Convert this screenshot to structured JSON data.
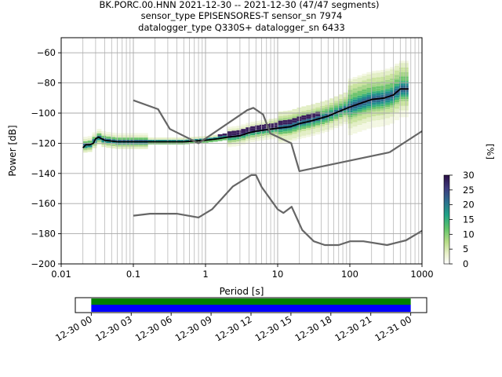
{
  "title": {
    "line1": "BK.PORC.00.HNN   2021-12-30 -- 2021-12-30  (47/47 segments)",
    "line2": "sensor_type EPISENSORES-T sensor_sn 7974",
    "line3": "datalogger_type Q330S+ datalogger_sn 6433"
  },
  "chart_data": [
    {
      "type": "heatmap",
      "title": "BK.PORC.00.HNN   2021-12-30 -- 2021-12-30  (47/47 segments)",
      "xlabel": "Period [s]",
      "ylabel": "Power [dB]",
      "x_scale": "log",
      "xlim": [
        0.01,
        1000
      ],
      "ylim": [
        -200,
        -50
      ],
      "x_tick_labels": [
        "0.01",
        "0.1",
        "1",
        "10",
        "100",
        "1000"
      ],
      "x_ticks": [
        0.01,
        0.1,
        1,
        10,
        100,
        1000
      ],
      "y_ticks": [
        -200,
        -180,
        -160,
        -140,
        -120,
        -100,
        -80,
        -60
      ],
      "y_tick_labels": [
        "−200",
        "−180",
        "−160",
        "−140",
        "−120",
        "−100",
        "−80",
        "−60"
      ],
      "grid": true,
      "colorbar": {
        "label": "[%]",
        "ticks": [
          0,
          5,
          10,
          15,
          20,
          25,
          30
        ],
        "range": [
          0,
          30
        ]
      },
      "series": [
        {
          "name": "",
          "role": "mode",
          "color": "#000000",
          "x": [
            0.02,
            0.022,
            0.025,
            0.028,
            0.03,
            0.033,
            0.04,
            0.06,
            0.1,
            0.2,
            0.5,
            1.0,
            1.5,
            2.0,
            3.0,
            4.0,
            5.0,
            7.0,
            10.0,
            15.0,
            20.0,
            30.0,
            50.0,
            70.0,
            100.0,
            150.0,
            200.0,
            300.0,
            400.0,
            500.0,
            650.0
          ],
          "y": [
            -123,
            -121,
            -121,
            -120,
            -117,
            -116,
            -118,
            -119,
            -119,
            -119,
            -119,
            -118,
            -117,
            -116,
            -115,
            -113,
            -112,
            -111,
            -110,
            -109,
            -107,
            -105,
            -102,
            -99,
            -96,
            -93,
            -91,
            -90,
            -88,
            -84,
            -84
          ]
        },
        {
          "name": "",
          "role": "high-noise-model",
          "color": "#666666",
          "x": [
            0.1,
            0.22,
            0.32,
            0.8,
            3.8,
            4.6,
            6.3,
            7.9,
            15.4,
            20.0,
            354.8
          ],
          "y": [
            -91.5,
            -97.4,
            -110.5,
            -120.0,
            -98.0,
            -96.5,
            -101.0,
            -113.5,
            -120.0,
            -138.5,
            -126.0
          ]
        },
        {
          "name": "",
          "role": "high-noise-model-long-period",
          "color": "#666666",
          "x": [
            354.8,
            1000.0
          ],
          "y": [
            -126.0,
            -112.0
          ]
        },
        {
          "name": "",
          "role": "low-noise-model",
          "color": "#666666",
          "x": [
            0.1,
            0.17,
            0.4,
            0.8,
            1.24,
            2.4,
            4.3,
            5.0,
            6.0,
            10.0,
            12.0,
            15.6,
            21.9,
            31.6,
            45.0,
            70.0,
            101.0,
            154.0,
            328.0,
            600.0,
            1000.0
          ],
          "y": [
            -168.0,
            -166.7,
            -166.7,
            -169.2,
            -163.7,
            -148.6,
            -141.1,
            -141.1,
            -149.0,
            -163.8,
            -166.2,
            -162.1,
            -177.5,
            -185.0,
            -187.5,
            -187.5,
            -185.0,
            -185.0,
            -187.5,
            -184.4,
            -178.0
          ]
        }
      ]
    },
    {
      "type": "timeline",
      "x_tick_labels": [
        "12-30 00",
        "12-30 03",
        "12-30 06",
        "12-30 09",
        "12-30 12",
        "12-30 15",
        "12-30 18",
        "12-30 21",
        "12-31 00"
      ],
      "x_ticks_hours": [
        0,
        3,
        6,
        9,
        12,
        15,
        18,
        21,
        24
      ],
      "xlim_hours": [
        -1.2,
        25.2
      ],
      "bars": [
        {
          "role": "data-coverage",
          "color": "#008000",
          "start_hour": 0,
          "end_hour": 24
        },
        {
          "role": "psd-segments",
          "color": "#0000ff",
          "start_hour": 0,
          "end_hour": 24
        }
      ]
    }
  ],
  "colors": {
    "mode_line": "#000000",
    "noise_models": "#666666",
    "grid": "#b0b0b0",
    "coverage_green": "#008000",
    "coverage_blue": "#0000ff"
  }
}
